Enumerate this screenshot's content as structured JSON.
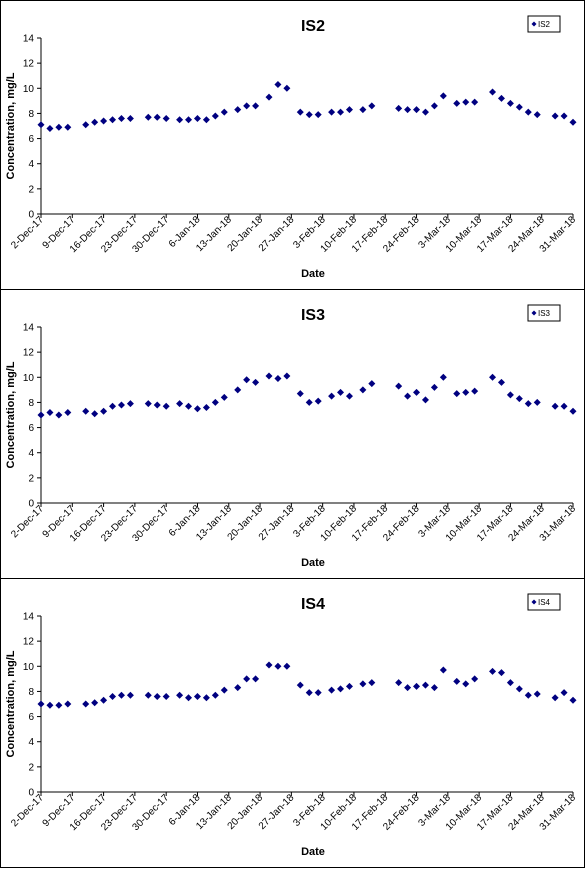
{
  "chart_data": [
    {
      "type": "scatter",
      "title": "IS2",
      "xlabel": "Date",
      "ylabel": "Concentration, mg/L",
      "ylim": [
        0,
        14
      ],
      "y_ticks": [
        "0",
        "2",
        "4",
        "6",
        "8",
        "10",
        "12",
        "14"
      ],
      "x_tick_labels": [
        "2-Dec-17",
        "9-Dec-17",
        "16-Dec-17",
        "23-Dec-17",
        "30-Dec-17",
        "6-Jan-18",
        "13-Jan-18",
        "20-Jan-18",
        "27-Jan-18",
        "3-Feb-18",
        "10-Feb-18",
        "17-Feb-18",
        "24-Feb-18",
        "3-Mar-18",
        "10-Mar-18",
        "17-Mar-18",
        "24-Mar-18",
        "31-Mar-18"
      ],
      "xlim": [
        "2017-12-02",
        "2018-03-31"
      ],
      "legend": "top-right",
      "marker_color": "#000080",
      "series": [
        {
          "name": "IS2",
          "x": [
            "2017-12-02",
            "2017-12-04",
            "2017-12-06",
            "2017-12-08",
            "2017-12-12",
            "2017-12-14",
            "2017-12-16",
            "2017-12-18",
            "2017-12-20",
            "2017-12-22",
            "2017-12-26",
            "2017-12-28",
            "2017-12-30",
            "2018-01-02",
            "2018-01-04",
            "2018-01-06",
            "2018-01-08",
            "2018-01-10",
            "2018-01-12",
            "2018-01-15",
            "2018-01-17",
            "2018-01-19",
            "2018-01-22",
            "2018-01-24",
            "2018-01-26",
            "2018-01-29",
            "2018-01-31",
            "2018-02-02",
            "2018-02-05",
            "2018-02-07",
            "2018-02-09",
            "2018-02-12",
            "2018-02-14",
            "2018-02-20",
            "2018-02-22",
            "2018-02-24",
            "2018-02-26",
            "2018-02-28",
            "2018-03-02",
            "2018-03-05",
            "2018-03-07",
            "2018-03-09",
            "2018-03-13",
            "2018-03-15",
            "2018-03-17",
            "2018-03-19",
            "2018-03-21",
            "2018-03-23",
            "2018-03-27",
            "2018-03-29",
            "2018-03-31"
          ],
          "y": [
            7.1,
            6.8,
            6.9,
            6.9,
            7.1,
            7.3,
            7.4,
            7.5,
            7.6,
            7.6,
            7.7,
            7.7,
            7.6,
            7.5,
            7.5,
            7.6,
            7.5,
            7.8,
            8.1,
            8.3,
            8.6,
            8.6,
            9.3,
            10.3,
            10.0,
            8.1,
            7.9,
            7.9,
            8.1,
            8.1,
            8.3,
            8.3,
            8.6,
            8.4,
            8.3,
            8.3,
            8.1,
            8.6,
            9.4,
            8.8,
            8.9,
            8.9,
            9.7,
            9.2,
            8.8,
            8.5,
            8.1,
            7.9,
            7.8,
            7.8,
            7.3
          ]
        }
      ]
    },
    {
      "type": "scatter",
      "title": "IS3",
      "xlabel": "Date",
      "ylabel": "Concentration, mg/L",
      "ylim": [
        0,
        14
      ],
      "y_ticks": [
        "0",
        "2",
        "4",
        "6",
        "8",
        "10",
        "12",
        "14"
      ],
      "x_tick_labels": [
        "2-Dec-17",
        "9-Dec-17",
        "16-Dec-17",
        "23-Dec-17",
        "30-Dec-17",
        "6-Jan-18",
        "13-Jan-18",
        "20-Jan-18",
        "27-Jan-18",
        "3-Feb-18",
        "10-Feb-18",
        "17-Feb-18",
        "24-Feb-18",
        "3-Mar-18",
        "10-Mar-18",
        "17-Mar-18",
        "24-Mar-18",
        "31-Mar-18"
      ],
      "xlim": [
        "2017-12-02",
        "2018-03-31"
      ],
      "legend": "top-right",
      "marker_color": "#000080",
      "series": [
        {
          "name": "IS3",
          "x": [
            "2017-12-02",
            "2017-12-04",
            "2017-12-06",
            "2017-12-08",
            "2017-12-12",
            "2017-12-14",
            "2017-12-16",
            "2017-12-18",
            "2017-12-20",
            "2017-12-22",
            "2017-12-26",
            "2017-12-28",
            "2017-12-30",
            "2018-01-02",
            "2018-01-04",
            "2018-01-06",
            "2018-01-08",
            "2018-01-10",
            "2018-01-12",
            "2018-01-15",
            "2018-01-17",
            "2018-01-19",
            "2018-01-22",
            "2018-01-24",
            "2018-01-26",
            "2018-01-29",
            "2018-01-31",
            "2018-02-02",
            "2018-02-05",
            "2018-02-07",
            "2018-02-09",
            "2018-02-12",
            "2018-02-14",
            "2018-02-20",
            "2018-02-22",
            "2018-02-24",
            "2018-02-26",
            "2018-02-28",
            "2018-03-02",
            "2018-03-05",
            "2018-03-07",
            "2018-03-09",
            "2018-03-13",
            "2018-03-15",
            "2018-03-17",
            "2018-03-19",
            "2018-03-21",
            "2018-03-23",
            "2018-03-27",
            "2018-03-29",
            "2018-03-31"
          ],
          "y": [
            7.0,
            7.2,
            7.0,
            7.2,
            7.3,
            7.1,
            7.3,
            7.7,
            7.8,
            7.9,
            7.9,
            7.8,
            7.7,
            7.9,
            7.7,
            7.5,
            7.6,
            8.0,
            8.4,
            9.0,
            9.8,
            9.6,
            10.1,
            9.9,
            10.1,
            8.7,
            8.0,
            8.1,
            8.5,
            8.8,
            8.5,
            9.0,
            9.5,
            9.3,
            8.5,
            8.8,
            8.2,
            9.2,
            10.0,
            8.7,
            8.8,
            8.9,
            10.0,
            9.6,
            8.6,
            8.3,
            7.9,
            8.0,
            7.7,
            7.7,
            7.3
          ]
        }
      ]
    },
    {
      "type": "scatter",
      "title": "IS4",
      "xlabel": "Date",
      "ylabel": "Concentration, mg/L",
      "ylim": [
        0,
        14
      ],
      "y_ticks": [
        "0",
        "2",
        "4",
        "6",
        "8",
        "10",
        "12",
        "14"
      ],
      "x_tick_labels": [
        "2-Dec-17",
        "9-Dec-17",
        "16-Dec-17",
        "23-Dec-17",
        "30-Dec-17",
        "6-Jan-18",
        "13-Jan-18",
        "20-Jan-18",
        "27-Jan-18",
        "3-Feb-18",
        "10-Feb-18",
        "17-Feb-18",
        "24-Feb-18",
        "3-Mar-18",
        "10-Mar-18",
        "17-Mar-18",
        "24-Mar-18",
        "31-Mar-18"
      ],
      "xlim": [
        "2017-12-02",
        "2018-03-31"
      ],
      "legend": "top-right",
      "marker_color": "#000080",
      "series": [
        {
          "name": "IS4",
          "x": [
            "2017-12-02",
            "2017-12-04",
            "2017-12-06",
            "2017-12-08",
            "2017-12-12",
            "2017-12-14",
            "2017-12-16",
            "2017-12-18",
            "2017-12-20",
            "2017-12-22",
            "2017-12-26",
            "2017-12-28",
            "2017-12-30",
            "2018-01-02",
            "2018-01-04",
            "2018-01-06",
            "2018-01-08",
            "2018-01-10",
            "2018-01-12",
            "2018-01-15",
            "2018-01-17",
            "2018-01-19",
            "2018-01-22",
            "2018-01-24",
            "2018-01-26",
            "2018-01-29",
            "2018-01-31",
            "2018-02-02",
            "2018-02-05",
            "2018-02-07",
            "2018-02-09",
            "2018-02-12",
            "2018-02-14",
            "2018-02-20",
            "2018-02-22",
            "2018-02-24",
            "2018-02-26",
            "2018-02-28",
            "2018-03-02",
            "2018-03-05",
            "2018-03-07",
            "2018-03-09",
            "2018-03-13",
            "2018-03-15",
            "2018-03-17",
            "2018-03-19",
            "2018-03-21",
            "2018-03-23",
            "2018-03-27",
            "2018-03-29",
            "2018-03-31"
          ],
          "y": [
            7.0,
            6.9,
            6.9,
            7.0,
            7.0,
            7.1,
            7.3,
            7.6,
            7.7,
            7.7,
            7.7,
            7.6,
            7.6,
            7.7,
            7.5,
            7.6,
            7.5,
            7.7,
            8.1,
            8.3,
            9.0,
            9.0,
            10.1,
            10.0,
            10.0,
            8.5,
            7.9,
            7.9,
            8.1,
            8.2,
            8.4,
            8.6,
            8.7,
            8.7,
            8.3,
            8.4,
            8.5,
            8.3,
            9.7,
            8.8,
            8.6,
            9.0,
            9.6,
            9.5,
            8.7,
            8.2,
            7.7,
            7.8,
            7.5,
            7.9,
            7.3
          ]
        }
      ]
    }
  ]
}
